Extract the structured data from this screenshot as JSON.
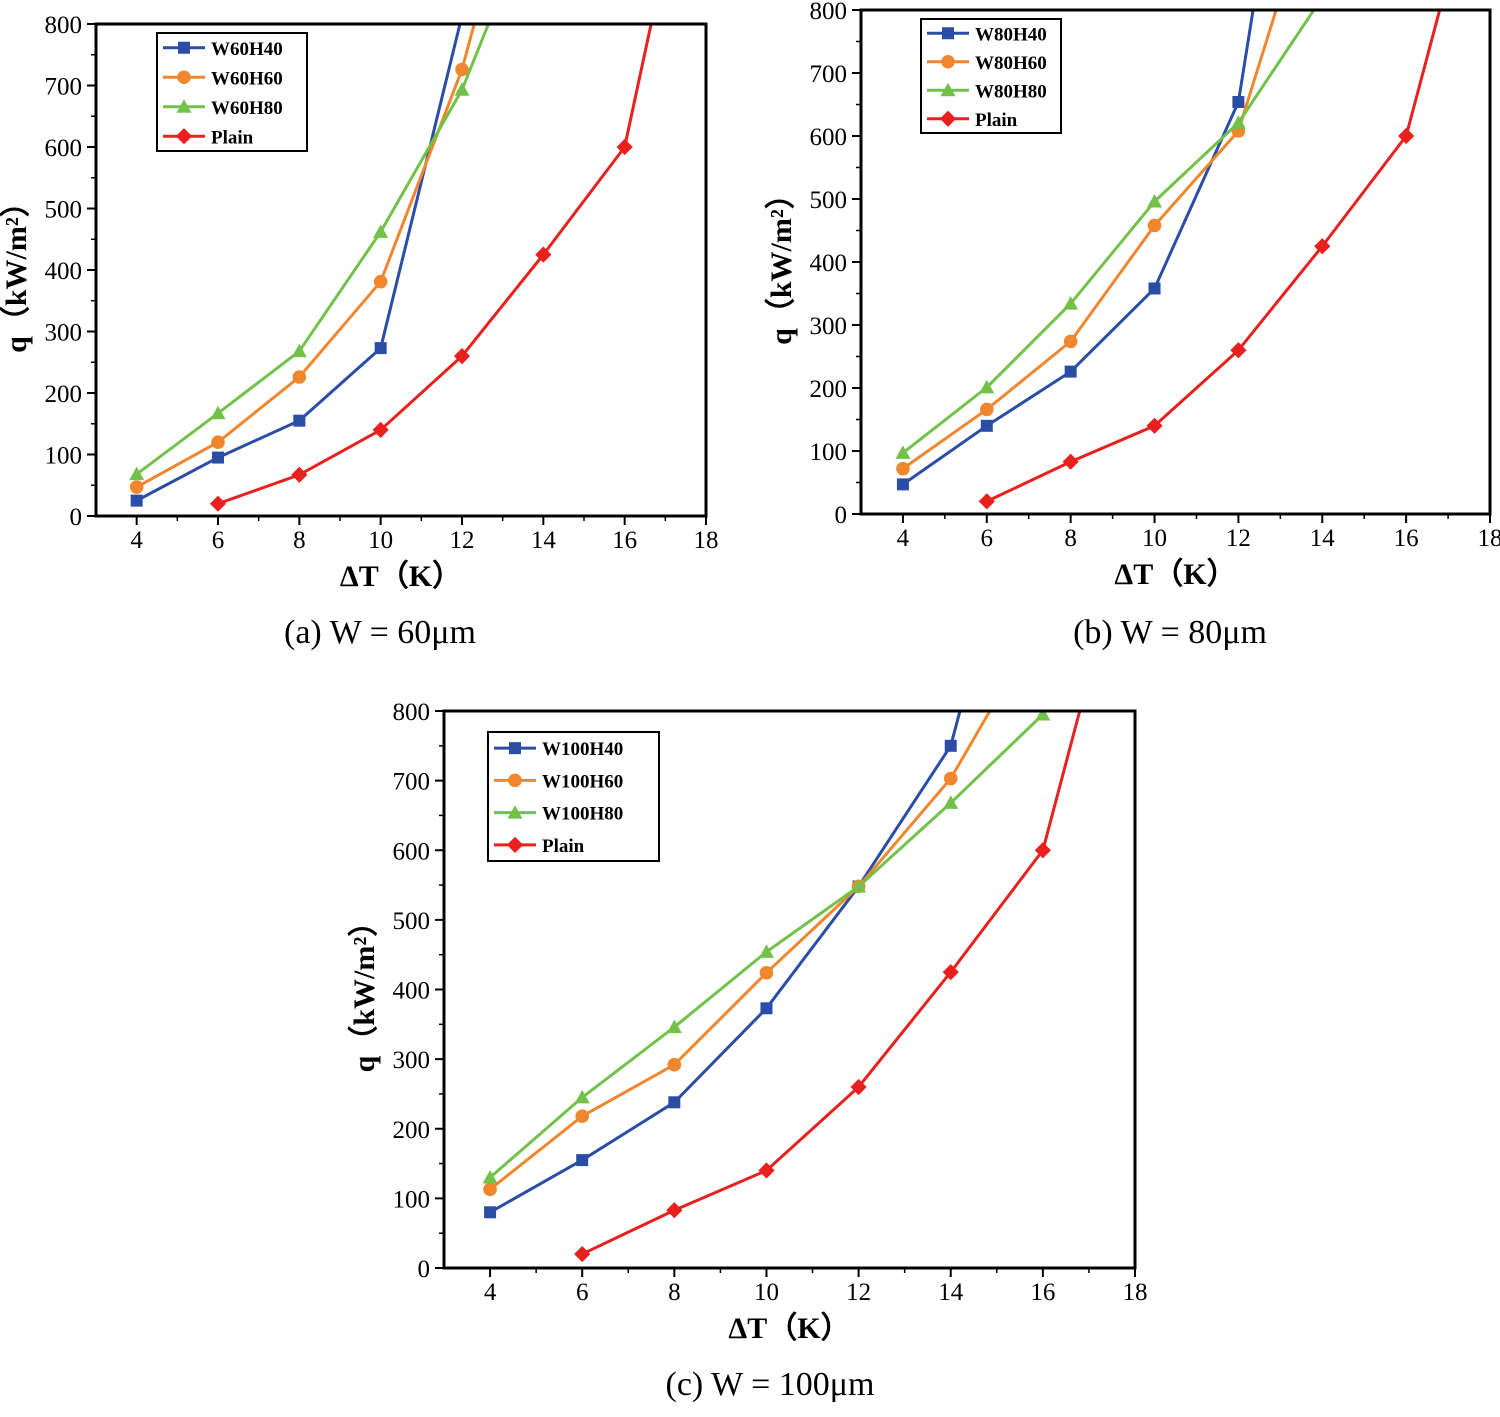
{
  "colors": {
    "blue": "#2a4ea6",
    "orange": "#f0872e",
    "green": "#72c24a",
    "red": "#e8211e"
  },
  "chart_data": [
    {
      "type": "line",
      "caption": "(a) W = 60μm",
      "xlabel": "ΔT（K）",
      "ylabel": "q（kW/m²）",
      "xlim": [
        3,
        18
      ],
      "ylim": [
        0,
        800
      ],
      "xticks": [
        4,
        6,
        8,
        10,
        12,
        14,
        16,
        18
      ],
      "yticks": [
        0,
        100,
        200,
        300,
        400,
        500,
        600,
        700,
        800
      ],
      "legend_position": "top-left",
      "series": [
        {
          "name": "W60H40",
          "marker": "square",
          "color": "#2a4ea6",
          "x": [
            4,
            6,
            8,
            10,
            11.95
          ],
          "y": [
            25,
            95,
            155,
            273,
            800
          ]
        },
        {
          "name": "W60H60",
          "marker": "circle",
          "color": "#f0872e",
          "x": [
            4,
            6,
            8,
            10,
            12,
            12.3
          ],
          "y": [
            47,
            120,
            226,
            381,
            726,
            800
          ]
        },
        {
          "name": "W60H80",
          "marker": "triangle",
          "color": "#72c24a",
          "x": [
            4,
            6,
            8,
            10,
            12,
            12.65
          ],
          "y": [
            68,
            167,
            268,
            462,
            693,
            800
          ]
        },
        {
          "name": "Plain",
          "marker": "diamond",
          "color": "#e8211e",
          "x": [
            6,
            8,
            10,
            12,
            14,
            16,
            16.65
          ],
          "y": [
            20,
            67,
            140,
            260,
            425,
            600,
            800
          ]
        }
      ]
    },
    {
      "type": "line",
      "caption": "(b) W = 80μm",
      "xlabel": "ΔT（K）",
      "ylabel": "q（kW/m²）",
      "xlim": [
        3,
        18
      ],
      "ylim": [
        0,
        800
      ],
      "xticks": [
        4,
        6,
        8,
        10,
        12,
        14,
        16,
        18
      ],
      "yticks": [
        0,
        100,
        200,
        300,
        400,
        500,
        600,
        700,
        800
      ],
      "legend_position": "top-left",
      "series": [
        {
          "name": "W80H40",
          "marker": "square",
          "color": "#2a4ea6",
          "x": [
            4,
            6,
            8,
            10,
            12,
            12.35
          ],
          "y": [
            47,
            140,
            226,
            358,
            654,
            800
          ]
        },
        {
          "name": "W80H60",
          "marker": "circle",
          "color": "#f0872e",
          "x": [
            4,
            6,
            8,
            10,
            12,
            12.9
          ],
          "y": [
            72,
            166,
            274,
            458,
            608,
            800
          ]
        },
        {
          "name": "W80H80",
          "marker": "triangle",
          "color": "#72c24a",
          "x": [
            4,
            6,
            8,
            10,
            12,
            13.8
          ],
          "y": [
            97,
            201,
            334,
            496,
            621,
            800
          ]
        },
        {
          "name": "Plain",
          "marker": "diamond",
          "color": "#e8211e",
          "x": [
            6,
            8,
            10,
            12,
            14,
            16,
            16.8
          ],
          "y": [
            20,
            83,
            140,
            260,
            425,
            600,
            800
          ]
        }
      ]
    },
    {
      "type": "line",
      "caption": "(c) W = 100μm",
      "xlabel": "ΔT（K）",
      "ylabel": "q（kW/m²）",
      "xlim": [
        3,
        18
      ],
      "ylim": [
        0,
        800
      ],
      "xticks": [
        4,
        6,
        8,
        10,
        12,
        14,
        16,
        18
      ],
      "yticks": [
        0,
        100,
        200,
        300,
        400,
        500,
        600,
        700,
        800
      ],
      "legend_position": "top-left",
      "series": [
        {
          "name": "W100H40",
          "marker": "square",
          "color": "#2a4ea6",
          "x": [
            4,
            6,
            8,
            10,
            12,
            14,
            14.2
          ],
          "y": [
            80,
            155,
            238,
            373,
            548,
            750,
            800
          ]
        },
        {
          "name": "W100H60",
          "marker": "circle",
          "color": "#f0872e",
          "x": [
            4,
            6,
            8,
            10,
            12,
            14,
            14.85
          ],
          "y": [
            113,
            218,
            292,
            424,
            548,
            703,
            800
          ]
        },
        {
          "name": "W100H80",
          "marker": "triangle",
          "color": "#72c24a",
          "x": [
            4,
            6,
            8,
            10,
            12,
            14,
            16
          ],
          "y": [
            130,
            245,
            346,
            454,
            548,
            668,
            795
          ]
        },
        {
          "name": "Plain",
          "marker": "diamond",
          "color": "#e8211e",
          "x": [
            6,
            8,
            10,
            12,
            14,
            16,
            16.8
          ],
          "y": [
            20,
            83,
            140,
            260,
            425,
            600,
            800
          ]
        }
      ]
    }
  ]
}
